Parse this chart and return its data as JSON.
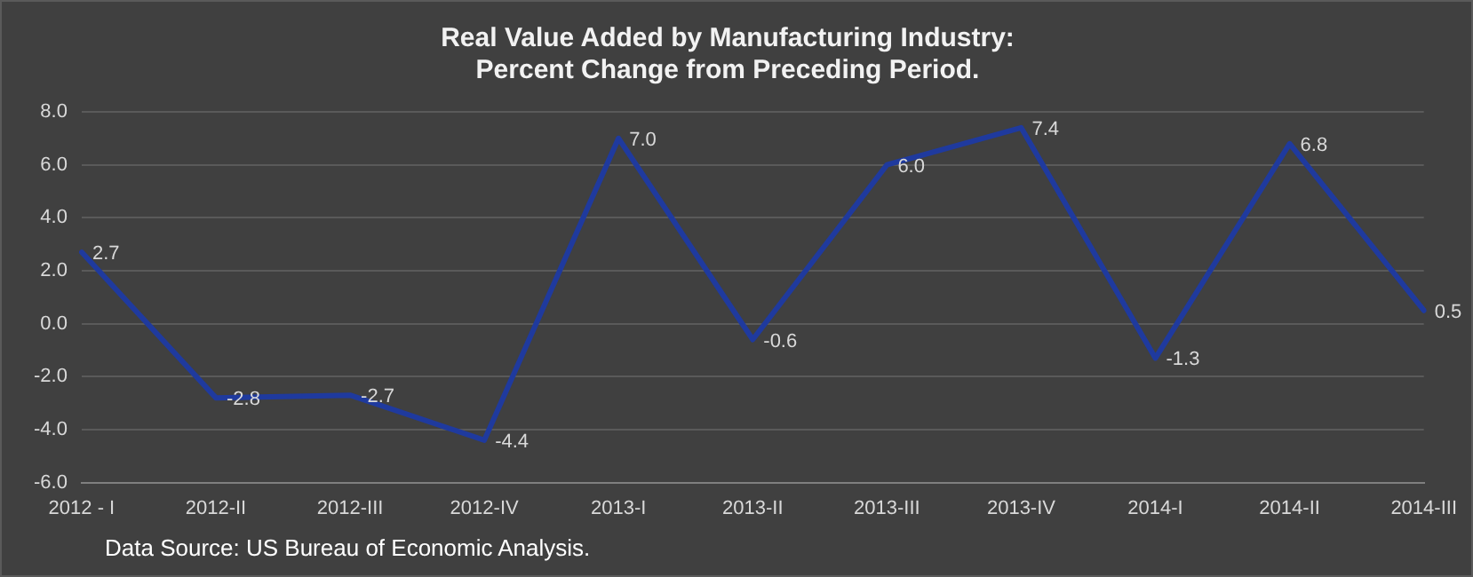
{
  "chart_data": {
    "type": "line",
    "title": "Real Value Added by Manufacturing Industry:\nPercent Change from Preceding Period.",
    "categories": [
      "2012 - I",
      "2012-II",
      "2012-III",
      "2012-IV",
      "2013-I",
      "2013-II",
      "2013-III",
      "2013-IV",
      "2014-I",
      "2014-II",
      "2014-III"
    ],
    "series": [
      {
        "color": "#1f3a9e",
        "values": [
          2.7,
          -2.8,
          -2.7,
          -4.4,
          7.0,
          -0.6,
          6.0,
          7.4,
          -1.3,
          6.8,
          0.5
        ],
        "value_labels": [
          "2.7",
          "-2.8",
          "-2.7",
          "-4.4",
          "7.0",
          "-0.6",
          "6.0",
          "7.4",
          "-1.3",
          "6.8",
          "0.5"
        ]
      }
    ],
    "ylim": [
      -6,
      8
    ],
    "yticks": [
      {
        "value": -6,
        "label": "-6.0"
      },
      {
        "value": -4,
        "label": "-4.0"
      },
      {
        "value": -2,
        "label": "-2.0"
      },
      {
        "value": 0,
        "label": "0.0"
      },
      {
        "value": 2,
        "label": "2.0"
      },
      {
        "value": 4,
        "label": "4.0"
      },
      {
        "value": 6,
        "label": "6.0"
      },
      {
        "value": 8,
        "label": "8.0"
      }
    ],
    "grid": "y",
    "legend": false,
    "marker": "none",
    "line_style": "solid",
    "annotations": [
      "Data Source: US Bureau of Economic Analysis."
    ]
  }
}
